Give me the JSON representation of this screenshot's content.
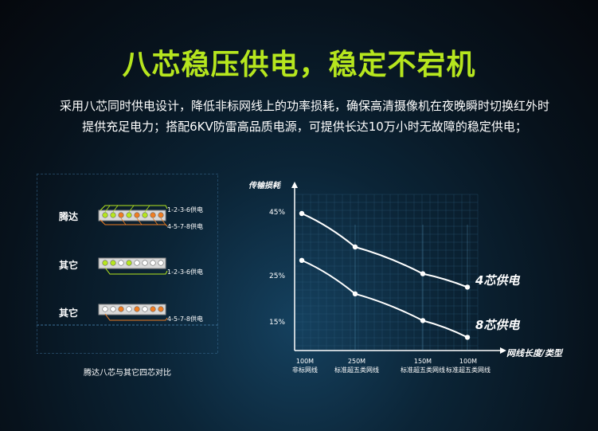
{
  "headline": "八芯稳压供电，稳定不宕机",
  "description": "采用八芯同时供电设计，降低非标网线上的功率损耗，确保高清摄像机在夜晚瞬时切换红外时提供充足电力；搭配6KV防雷高品质电源，可提供长达10万小时无故障的稳定供电；",
  "comparison": {
    "caption": "腾达八芯与其它四芯对比",
    "rows": [
      {
        "brand": "腾达",
        "labels": [
          "1-2-3-6供电",
          "4-5-7-8供电"
        ],
        "pins": [
          "green",
          "green",
          "orange",
          "green",
          "orange",
          "green",
          "orange",
          "orange"
        ]
      },
      {
        "brand": "其它",
        "labels": [
          "1-2-3-6供电"
        ],
        "pins": [
          "green",
          "green",
          "white",
          "green",
          "white",
          "white",
          "white",
          "white"
        ]
      },
      {
        "brand": "其它",
        "labels": [
          "4-5-7-8供电"
        ],
        "pins": [
          "white",
          "white",
          "orange",
          "white",
          "orange",
          "white",
          "orange",
          "orange"
        ]
      }
    ],
    "colors": {
      "green": "#b6e61e",
      "orange": "#ef7d22",
      "white": "#ffffff"
    }
  },
  "chart_data": {
    "type": "line",
    "ylabel": "传输损耗",
    "xlabel": "网线长度/类型",
    "yticks": [
      "45%",
      "25%",
      "15%"
    ],
    "categories": [
      {
        "tick": "100M",
        "sub": "非标网线"
      },
      {
        "tick": "250M",
        "sub": "标准超五类网线"
      },
      {
        "tick": "150M",
        "sub": "标准超五类网线"
      },
      {
        "tick": "100M",
        "sub": "标准超五类网线"
      }
    ],
    "series": [
      {
        "name": "4芯供电",
        "values": [
          45,
          35,
          27,
          23
        ]
      },
      {
        "name": "8芯供电",
        "values": [
          31,
          21,
          13,
          8
        ]
      }
    ],
    "grid": true,
    "legend": "right"
  }
}
